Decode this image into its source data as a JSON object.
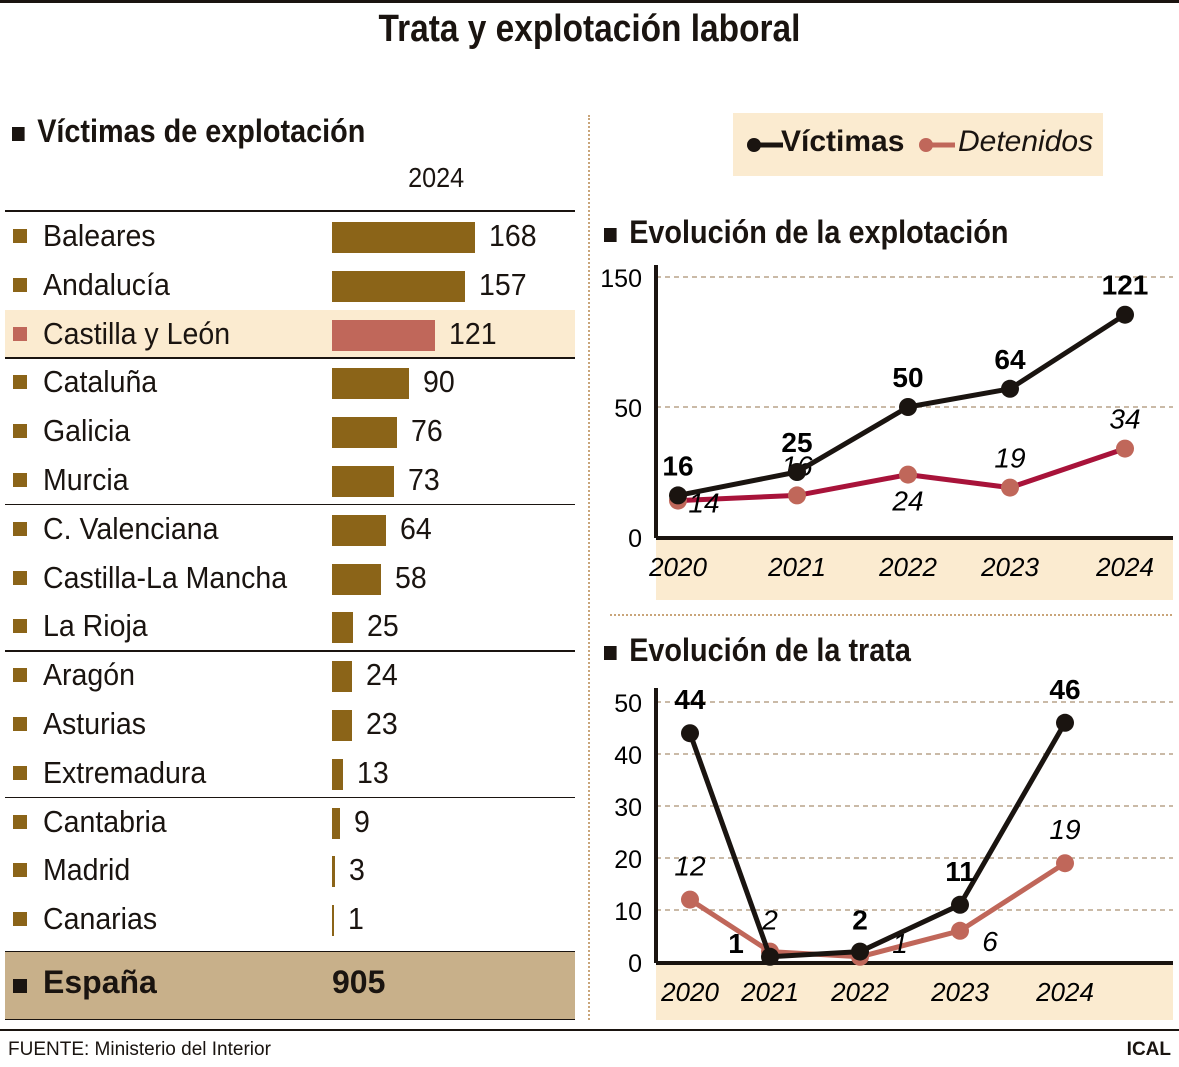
{
  "title": "Trata y explotación laboral",
  "left": {
    "heading": "Víctimas de explotación",
    "year": "2024",
    "rows": [
      {
        "name": "Baleares",
        "value": 168
      },
      {
        "name": "Andalucía",
        "value": 157
      },
      {
        "name": "Castilla y León",
        "value": 121,
        "highlight": true
      },
      {
        "name": "Cataluña",
        "value": 90
      },
      {
        "name": "Galicia",
        "value": 76
      },
      {
        "name": "Murcia",
        "value": 73
      },
      {
        "name": "C. Valenciana",
        "value": 64
      },
      {
        "name": "Castilla-La Mancha",
        "value": 58
      },
      {
        "name": "La Rioja",
        "value": 25
      },
      {
        "name": "Aragón",
        "value": 24
      },
      {
        "name": "Asturias",
        "value": 23
      },
      {
        "name": "Extremadura",
        "value": 13
      },
      {
        "name": "Cantabria",
        "value": 9
      },
      {
        "name": "Madrid",
        "value": 3
      },
      {
        "name": "Canarias",
        "value": 1
      }
    ],
    "total": {
      "name": "España",
      "value": "905"
    }
  },
  "legend": {
    "victims": "Víctimas",
    "arrested": "Detenidos"
  },
  "colors": {
    "bar": "#8b6418",
    "highlight": "#c0675a",
    "victims": "#1a1410",
    "arrested_exploitation": "#a8133a",
    "arrested_trafficking": "#c0675a",
    "markerArrested": "#c0675a",
    "band": "#fbebd0"
  },
  "chart_data": [
    {
      "type": "line",
      "title": "Evolución de la explotación",
      "x": [
        "2020",
        "2021",
        "2022",
        "2023",
        "2024"
      ],
      "yticks": [
        0,
        50,
        150
      ],
      "ylim": [
        0,
        150
      ],
      "grid": true,
      "series": [
        {
          "name": "Víctimas",
          "values": [
            16,
            25,
            50,
            64,
            121
          ]
        },
        {
          "name": "Detenidos",
          "values": [
            14,
            16,
            24,
            19,
            34
          ]
        }
      ]
    },
    {
      "type": "line",
      "title": "Evolución de la trata",
      "x": [
        "2020",
        "2021",
        "2022",
        "2023",
        "2024"
      ],
      "yticks": [
        0,
        10,
        20,
        30,
        40,
        50
      ],
      "ylim": [
        0,
        50
      ],
      "grid": true,
      "series": [
        {
          "name": "Víctimas",
          "values": [
            44,
            1,
            2,
            11,
            46
          ]
        },
        {
          "name": "Detenidos",
          "values": [
            12,
            2,
            1,
            6,
            19
          ]
        }
      ]
    }
  ],
  "footer": {
    "source": "FUENTE: Ministerio del Interior",
    "brand": "ICAL"
  }
}
